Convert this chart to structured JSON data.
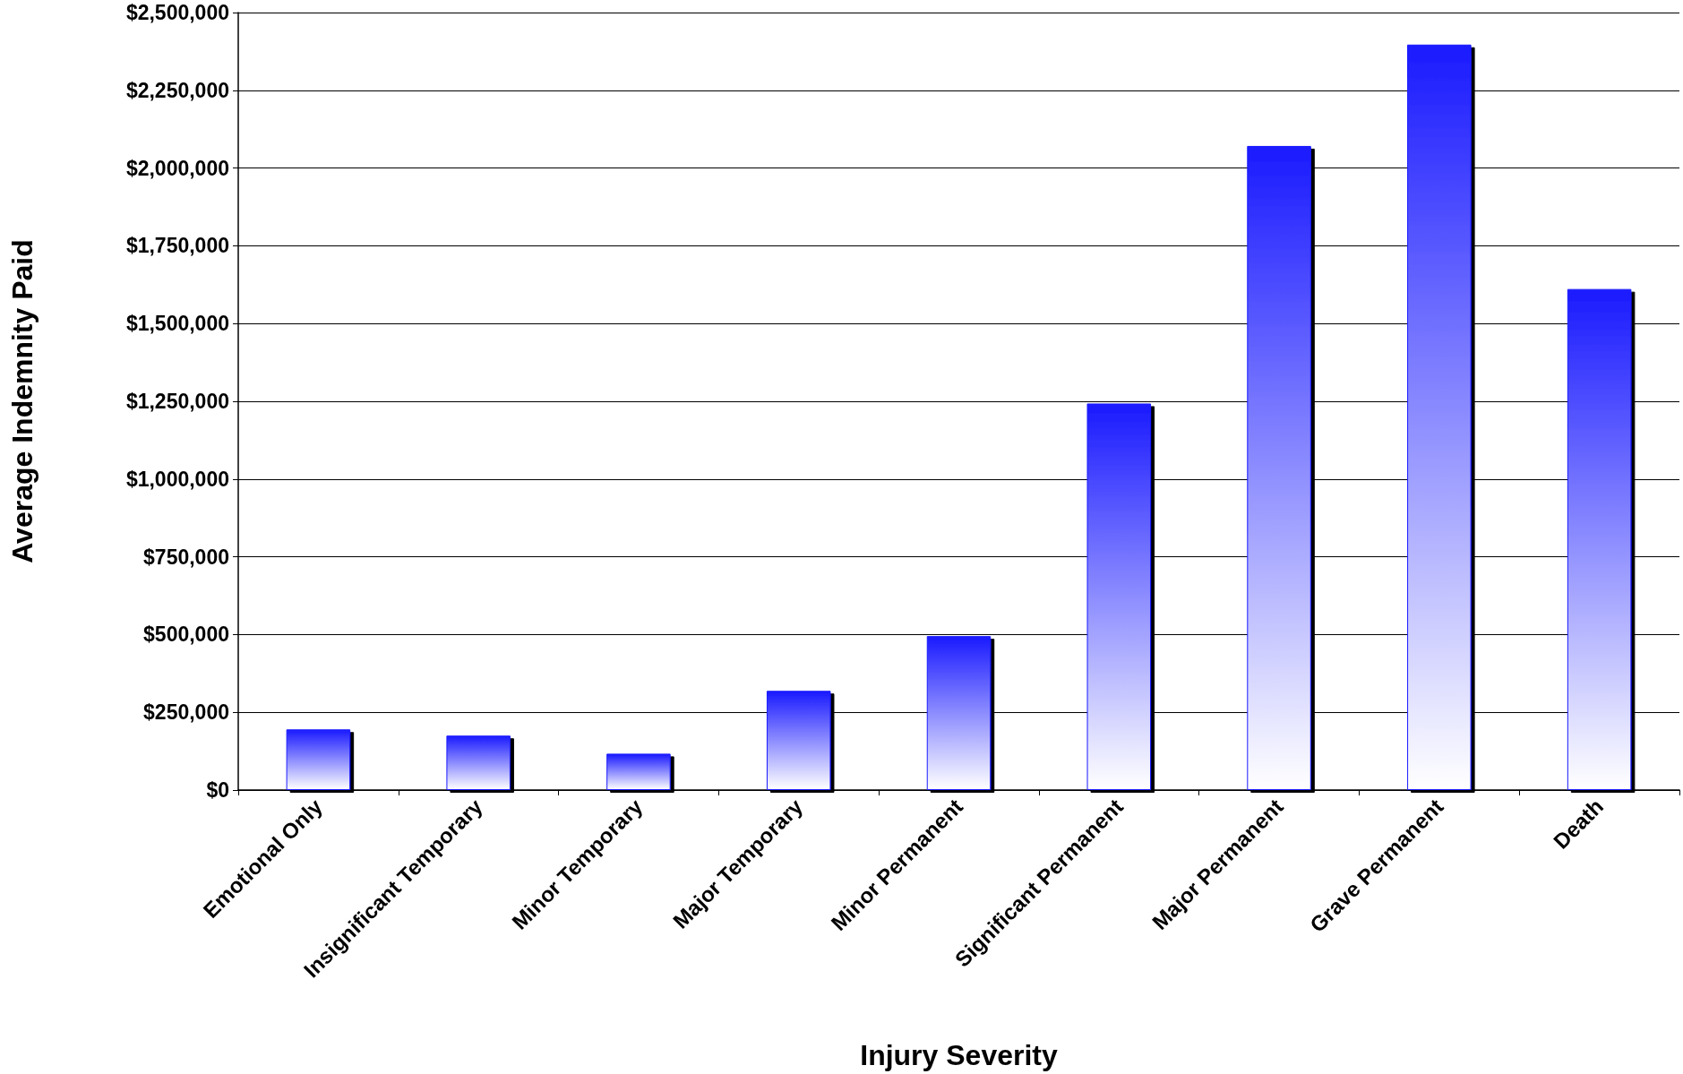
{
  "chart_data": {
    "type": "bar",
    "xlabel": "Injury Severity",
    "ylabel": "Average Indemnity Paid",
    "categories": [
      "Emotional Only",
      "Insignificant Temporary",
      "Minor Temporary",
      "Major Temporary",
      "Minor Permanent",
      "Significant Permanent",
      "Major Permanent",
      "Grave Permanent",
      "Death"
    ],
    "values": [
      195000,
      175000,
      117000,
      319000,
      495000,
      1243000,
      2071000,
      2397000,
      1611000
    ],
    "color": "#1a1aff",
    "ylim": [
      0,
      2500000
    ],
    "yticks": [
      {
        "value": 0,
        "label": "$0"
      },
      {
        "value": 250000,
        "label": "$250,000"
      },
      {
        "value": 500000,
        "label": "$500,000"
      },
      {
        "value": 750000,
        "label": "$750,000"
      },
      {
        "value": 1000000,
        "label": "$1,000,000"
      },
      {
        "value": 1250000,
        "label": "$1,250,000"
      },
      {
        "value": 1500000,
        "label": "$1,500,000"
      },
      {
        "value": 1750000,
        "label": "$1,750,000"
      },
      {
        "value": 2000000,
        "label": "$2,000,000"
      },
      {
        "value": 2250000,
        "label": "$2,250,000"
      },
      {
        "value": 2500000,
        "label": "$2,500,000"
      }
    ],
    "grid": "y"
  }
}
